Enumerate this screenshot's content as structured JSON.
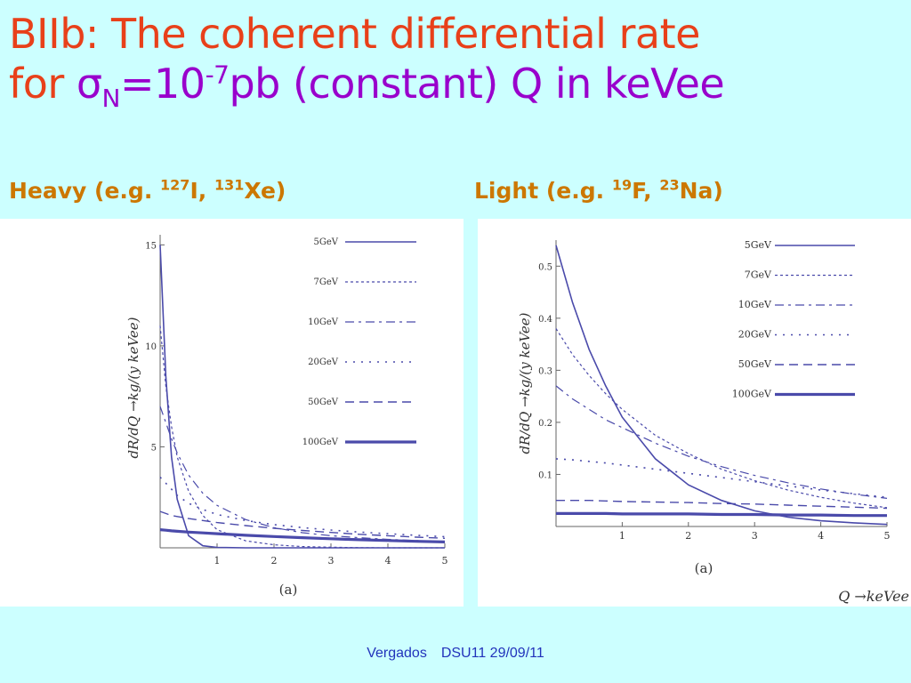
{
  "slide": {
    "title_line1": "BIIb: The coherent differential rate",
    "title_line2_a": "for ",
    "title_sigma": "σ",
    "title_sigma_sub": "N",
    "title_eq": "=10",
    "title_exp": "-7",
    "title_after_exp": "pb (constant) ",
    "title_q": "Q in keVee",
    "heavy_a": "Heavy (e.g.  ",
    "heavy_i_mass": "127",
    "heavy_i": "I, ",
    "heavy_xe_mass": "131",
    "heavy_xe": "Xe)",
    "light_a": "Light (e.g.  ",
    "light_f_mass": "19",
    "light_f": "F, ",
    "light_na_mass": "23",
    "light_na": "Na)",
    "footer_author": "Vergados",
    "footer_event": "DSU11  29/09/11"
  },
  "colors": {
    "title": "#e8401a",
    "accent": "#9900cc",
    "subtitle": "#cc7700",
    "curve": "#4a4aaa",
    "background": "#ccffff"
  },
  "chart_data": [
    {
      "type": "line",
      "panel": "heavy",
      "ylabel": "dR/dQ →kg/(y keVee)",
      "caption": "(a)",
      "xlim": [
        0,
        5
      ],
      "ylim": [
        0,
        15.5
      ],
      "xticks": [
        "1",
        "2",
        "3",
        "4",
        "5"
      ],
      "yticks": [
        "5",
        "10",
        "15"
      ],
      "x": [
        0,
        0.1,
        0.2,
        0.3,
        0.5,
        0.75,
        1,
        1.5,
        2,
        2.5,
        3,
        3.5,
        4,
        4.5,
        5
      ],
      "series": [
        {
          "name": "5GeV",
          "values": [
            15,
            8.5,
            4.5,
            2.4,
            0.6,
            0.1,
            0.02,
            0,
            0,
            0,
            0,
            0,
            0,
            0,
            0
          ]
        },
        {
          "name": "7GeV",
          "values": [
            11,
            8.0,
            6.0,
            4.5,
            2.8,
            1.6,
            0.9,
            0.35,
            0.15,
            0.06,
            0.03,
            0.01,
            0,
            0,
            0
          ]
        },
        {
          "name": "10GeV",
          "values": [
            7,
            6.2,
            5.4,
            4.7,
            3.6,
            2.7,
            2.1,
            1.4,
            1.0,
            0.75,
            0.6,
            0.5,
            0.42,
            0.36,
            0.3
          ]
        },
        {
          "name": "20GeV",
          "values": [
            3.5,
            3.2,
            2.9,
            2.6,
            2.2,
            1.9,
            1.65,
            1.35,
            1.15,
            1.0,
            0.88,
            0.78,
            0.7,
            0.62,
            0.55
          ]
        },
        {
          "name": "50GeV",
          "values": [
            1.8,
            1.7,
            1.6,
            1.55,
            1.45,
            1.35,
            1.25,
            1.1,
            0.97,
            0.86,
            0.76,
            0.67,
            0.6,
            0.53,
            0.47
          ]
        },
        {
          "name": "100GeV",
          "values": [
            0.9,
            0.87,
            0.84,
            0.82,
            0.78,
            0.74,
            0.7,
            0.62,
            0.56,
            0.5,
            0.45,
            0.4,
            0.36,
            0.32,
            0.29
          ]
        }
      ]
    },
    {
      "type": "line",
      "panel": "light",
      "ylabel": "dR/dQ →kg/(y keVee)",
      "xlabel": "Q →keVee",
      "caption": "(a)",
      "xlim": [
        0,
        5
      ],
      "ylim": [
        0,
        0.55
      ],
      "xticks": [
        "1",
        "2",
        "3",
        "4",
        "5"
      ],
      "yticks": [
        "0.1",
        "0.2",
        "0.3",
        "0.4",
        "0.5"
      ],
      "x": [
        0,
        0.25,
        0.5,
        0.75,
        1,
        1.5,
        2,
        2.5,
        3,
        3.5,
        4,
        4.5,
        5
      ],
      "series": [
        {
          "name": "5GeV",
          "values": [
            0.54,
            0.43,
            0.34,
            0.27,
            0.21,
            0.13,
            0.08,
            0.05,
            0.03,
            0.018,
            0.011,
            0.007,
            0.004
          ]
        },
        {
          "name": "7GeV",
          "values": [
            0.38,
            0.33,
            0.29,
            0.255,
            0.225,
            0.175,
            0.14,
            0.11,
            0.088,
            0.07,
            0.056,
            0.045,
            0.036
          ]
        },
        {
          "name": "10GeV",
          "values": [
            0.27,
            0.245,
            0.225,
            0.205,
            0.19,
            0.16,
            0.135,
            0.115,
            0.098,
            0.084,
            0.072,
            0.062,
            0.054
          ]
        },
        {
          "name": "20GeV",
          "values": [
            0.13,
            0.128,
            0.125,
            0.122,
            0.118,
            0.11,
            0.102,
            0.094,
            0.086,
            0.078,
            0.07,
            0.063,
            0.056
          ]
        },
        {
          "name": "50GeV",
          "values": [
            0.05,
            0.05,
            0.05,
            0.049,
            0.048,
            0.047,
            0.046,
            0.044,
            0.043,
            0.041,
            0.039,
            0.037,
            0.035
          ]
        },
        {
          "name": "100GeV",
          "values": [
            0.025,
            0.025,
            0.025,
            0.025,
            0.024,
            0.024,
            0.024,
            0.023,
            0.023,
            0.022,
            0.022,
            0.021,
            0.021
          ]
        }
      ]
    }
  ]
}
